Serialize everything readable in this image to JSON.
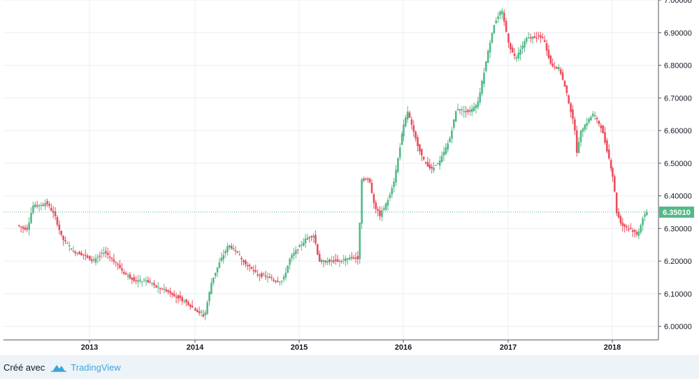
{
  "chart_data": {
    "type": "candlestick",
    "x_axis": {
      "tick_labels": [
        "2013",
        "2014",
        "2015",
        "2016",
        "2017",
        "2018"
      ]
    },
    "y_axis": {
      "range": [
        5.98,
        7.0
      ],
      "tick_labels": [
        "6.00000",
        "6.10000",
        "6.20000",
        "6.30000",
        "6.40000",
        "6.50000",
        "6.60000",
        "6.70000",
        "6.80000",
        "6.90000",
        "7.00000"
      ]
    },
    "last_price": 6.3501,
    "last_price_label": "6.35010",
    "grid": true,
    "colors": {
      "up": "#53b987",
      "down": "#eb4d5c",
      "grid": "#e9eff4",
      "price_line": "#53b987"
    },
    "series_path": [
      [
        2012.32,
        6.31
      ],
      [
        2012.38,
        6.3
      ],
      [
        2012.42,
        6.3
      ],
      [
        2012.47,
        6.37
      ],
      [
        2012.55,
        6.37
      ],
      [
        2012.6,
        6.38
      ],
      [
        2012.68,
        6.34
      ],
      [
        2012.75,
        6.27
      ],
      [
        2012.85,
        6.23
      ],
      [
        2012.95,
        6.22
      ],
      [
        2013.05,
        6.2
      ],
      [
        2013.15,
        6.23
      ],
      [
        2013.25,
        6.2
      ],
      [
        2013.35,
        6.16
      ],
      [
        2013.45,
        6.14
      ],
      [
        2013.55,
        6.14
      ],
      [
        2013.65,
        6.12
      ],
      [
        2013.75,
        6.11
      ],
      [
        2013.85,
        6.09
      ],
      [
        2013.95,
        6.07
      ],
      [
        2014.02,
        6.05
      ],
      [
        2014.1,
        6.03
      ],
      [
        2014.17,
        6.14
      ],
      [
        2014.25,
        6.2
      ],
      [
        2014.33,
        6.25
      ],
      [
        2014.4,
        6.23
      ],
      [
        2014.5,
        6.19
      ],
      [
        2014.6,
        6.16
      ],
      [
        2014.7,
        6.15
      ],
      [
        2014.78,
        6.14
      ],
      [
        2014.85,
        6.14
      ],
      [
        2014.92,
        6.21
      ],
      [
        2015.0,
        6.24
      ],
      [
        2015.08,
        6.27
      ],
      [
        2015.15,
        6.28
      ],
      [
        2015.2,
        6.2
      ],
      [
        2015.3,
        6.2
      ],
      [
        2015.4,
        6.2
      ],
      [
        2015.5,
        6.21
      ],
      [
        2015.58,
        6.21
      ],
      [
        2015.6,
        6.45
      ],
      [
        2015.68,
        6.45
      ],
      [
        2015.73,
        6.37
      ],
      [
        2015.78,
        6.34
      ],
      [
        2015.85,
        6.38
      ],
      [
        2015.92,
        6.45
      ],
      [
        2016.0,
        6.6
      ],
      [
        2016.05,
        6.66
      ],
      [
        2016.12,
        6.58
      ],
      [
        2016.2,
        6.51
      ],
      [
        2016.28,
        6.48
      ],
      [
        2016.35,
        6.5
      ],
      [
        2016.45,
        6.57
      ],
      [
        2016.52,
        6.67
      ],
      [
        2016.58,
        6.66
      ],
      [
        2016.65,
        6.66
      ],
      [
        2016.72,
        6.68
      ],
      [
        2016.8,
        6.81
      ],
      [
        2016.87,
        6.92
      ],
      [
        2016.95,
        6.97
      ],
      [
        2017.02,
        6.86
      ],
      [
        2017.08,
        6.82
      ],
      [
        2017.18,
        6.88
      ],
      [
        2017.28,
        6.89
      ],
      [
        2017.35,
        6.88
      ],
      [
        2017.42,
        6.8
      ],
      [
        2017.5,
        6.79
      ],
      [
        2017.58,
        6.7
      ],
      [
        2017.65,
        6.6
      ],
      [
        2017.67,
        6.52
      ],
      [
        2017.7,
        6.6
      ],
      [
        2017.75,
        6.62
      ],
      [
        2017.82,
        6.65
      ],
      [
        2017.9,
        6.61
      ],
      [
        2017.97,
        6.52
      ],
      [
        2018.02,
        6.45
      ],
      [
        2018.05,
        6.35
      ],
      [
        2018.1,
        6.31
      ],
      [
        2018.18,
        6.3
      ],
      [
        2018.25,
        6.28
      ],
      [
        2018.3,
        6.33
      ],
      [
        2018.33,
        6.35
      ]
    ]
  },
  "footer": {
    "made_with": "Créé avec",
    "brand": "TradingView",
    "logo_icon": "tradingview-cloud-icon"
  }
}
